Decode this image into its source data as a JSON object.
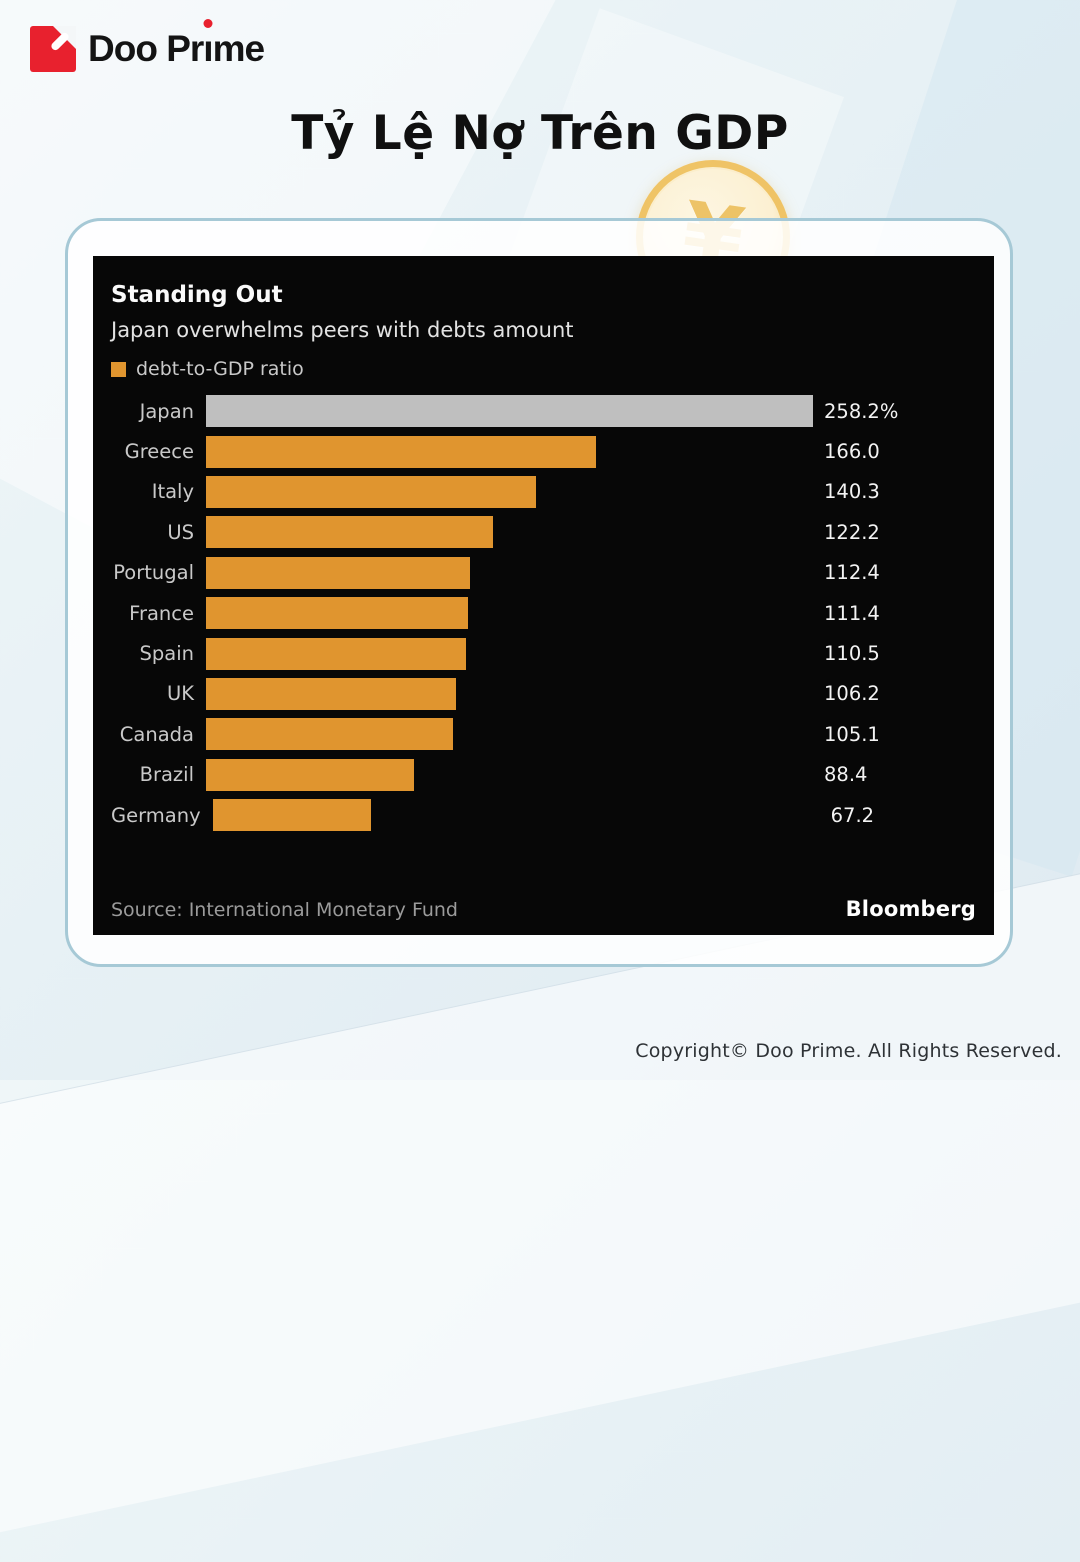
{
  "brand": {
    "name": "Doo Prime",
    "logo_part1": "Doo Pr",
    "logo_i": "ı",
    "logo_part2": "me",
    "logo_red": "#e8212e"
  },
  "page": {
    "title": "Tỷ Lệ Nợ Trên GDP",
    "copyright": "Copyright© Doo Prime. All Rights Reserved."
  },
  "coin": {
    "symbol": "¥"
  },
  "chart_data": {
    "type": "bar",
    "orientation": "horizontal",
    "title": "Standing Out",
    "subtitle": "Japan overwhelms peers with debts amount",
    "legend": [
      {
        "label": "debt-to-GDP ratio",
        "color": "#e0952f"
      }
    ],
    "legend_position": "top-left",
    "grid": false,
    "categories": [
      "Japan",
      "Greece",
      "Italy",
      "US",
      "Portugal",
      "France",
      "Spain",
      "UK",
      "Canada",
      "Brazil",
      "Germany"
    ],
    "values": [
      258.2,
      166.0,
      140.3,
      122.2,
      112.4,
      111.4,
      110.5,
      106.2,
      105.1,
      88.4,
      67.2
    ],
    "value_labels": [
      "258.2%",
      "166.0",
      "140.3",
      "122.2",
      "112.4",
      "111.4",
      "110.5",
      "106.2",
      "105.1",
      "88.4",
      "67.2"
    ],
    "xlim": [
      0,
      258.2
    ],
    "bar_color": "#e0952f",
    "highlight": {
      "index": 0,
      "color": "#bfbfbf"
    },
    "background": "#070707",
    "source": "Source: International Monetary Fund",
    "attribution": "Bloomberg"
  }
}
